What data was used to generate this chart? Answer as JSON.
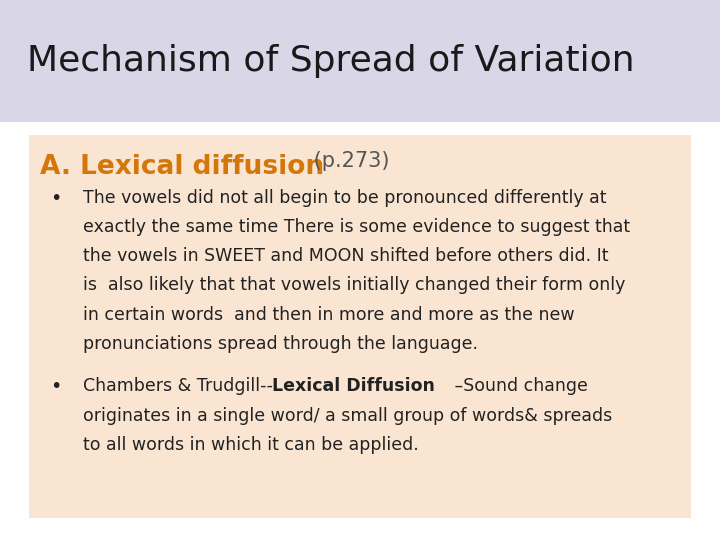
{
  "title": "Mechanism of Spread of Variation",
  "title_bg": "#d9d6e8",
  "title_color": "#1a1a1a",
  "title_fontsize": 26,
  "content_bg": "#fae5d3",
  "slide_bg": "#ffffff",
  "section_bold": "A. Lexical diffusion",
  "section_rest": " (p.273)",
  "section_color": "#d4770a",
  "section_rest_color": "#555555",
  "section_fontsize": 19,
  "section_rest_fontsize": 15,
  "bullet_color": "#222222",
  "bullet_fontsize": 12.5,
  "bullet1_lines": [
    "The vowels did not all begin to be pronounced differently at",
    "exactly the same time There is some evidence to suggest that",
    "the vowels in SWEET and MOON shifted before others did. It",
    "is  also likely that that vowels initially changed their form only",
    "in certain words  and then in more and more as the new",
    "pronunciations spread through the language."
  ],
  "bullet2_normal": "Chambers & Trudgill--",
  "bullet2_bold": "Lexical Diffusion",
  "bullet2_rest": " –Sound change",
  "bullet2_line2": "originates in a single word/ a small group of words& spreads",
  "bullet2_line3": "to all words in which it can be applied."
}
